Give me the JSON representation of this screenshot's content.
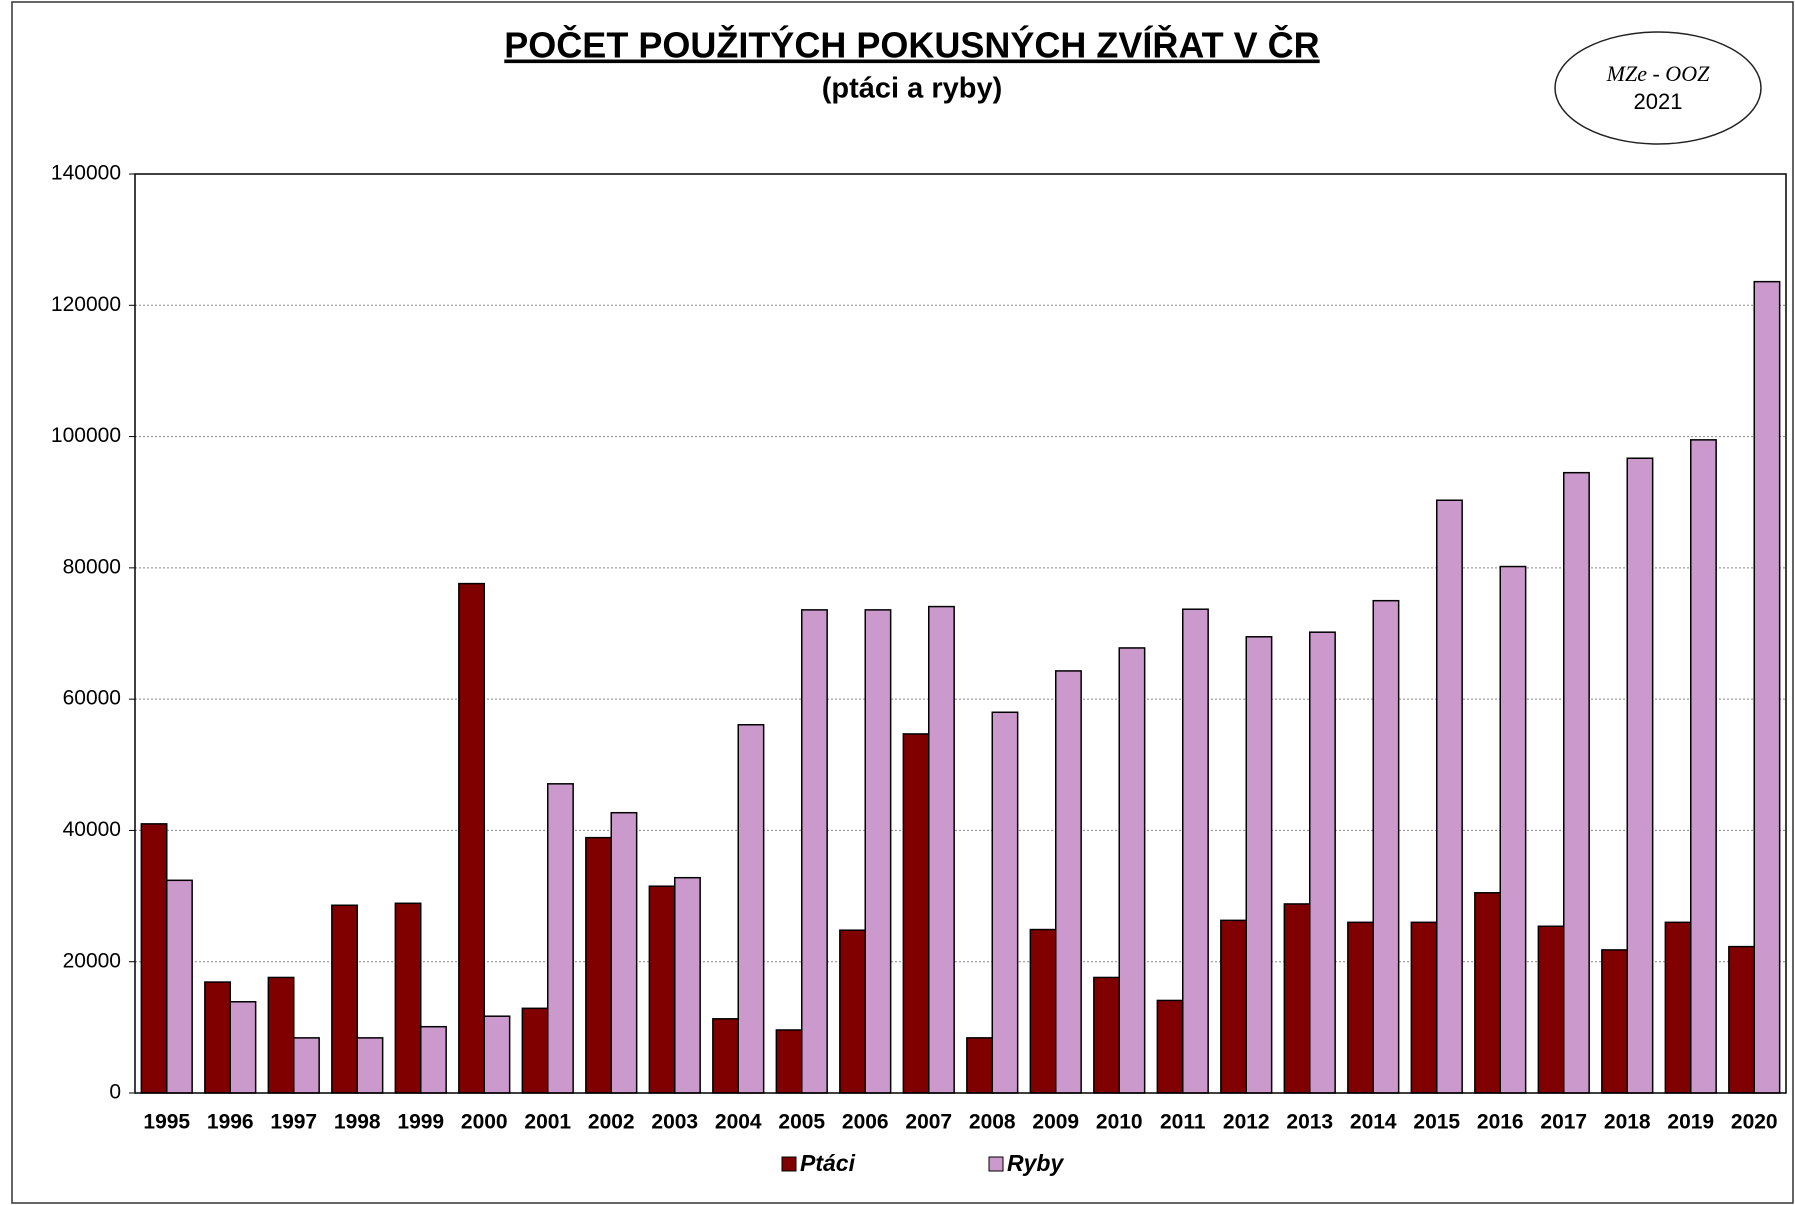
{
  "chart_data": {
    "type": "bar",
    "title": "POČET POUŽITÝCH POKUSNÝCH ZVÍŘAT V ČR",
    "subtitle": "(ptáci a ryby)",
    "annotation": [
      "MZe - OOZ",
      "2021"
    ],
    "categories": [
      "1995",
      "1996",
      "1997",
      "1998",
      "1999",
      "2000",
      "2001",
      "2002",
      "2003",
      "2004",
      "2005",
      "2006",
      "2007",
      "2008",
      "2009",
      "2010",
      "2011",
      "2012",
      "2013",
      "2014",
      "2015",
      "2016",
      "2017",
      "2018",
      "2019",
      "2020"
    ],
    "series": [
      {
        "name": "Ptáci",
        "color": "#800000",
        "values": [
          41000,
          16900,
          17600,
          28600,
          28900,
          77600,
          12900,
          38900,
          31500,
          11300,
          9600,
          24800,
          54700,
          8400,
          24900,
          17600,
          14100,
          26300,
          28800,
          26000,
          26000,
          30500,
          25400,
          21800,
          26000,
          22300
        ]
      },
      {
        "name": "Ryby",
        "color": "#cc99cc",
        "values": [
          32400,
          13900,
          8400,
          8400,
          10100,
          11700,
          47100,
          42700,
          32800,
          56100,
          73600,
          73600,
          74100,
          58000,
          64300,
          67800,
          73700,
          69500,
          70200,
          75000,
          90300,
          80200,
          94500,
          96700,
          99500,
          123600
        ]
      }
    ],
    "ylim": [
      0,
      140000
    ],
    "yticks": [
      0,
      20000,
      40000,
      60000,
      80000,
      100000,
      120000,
      140000
    ],
    "grid": true,
    "legend": "bottom"
  }
}
